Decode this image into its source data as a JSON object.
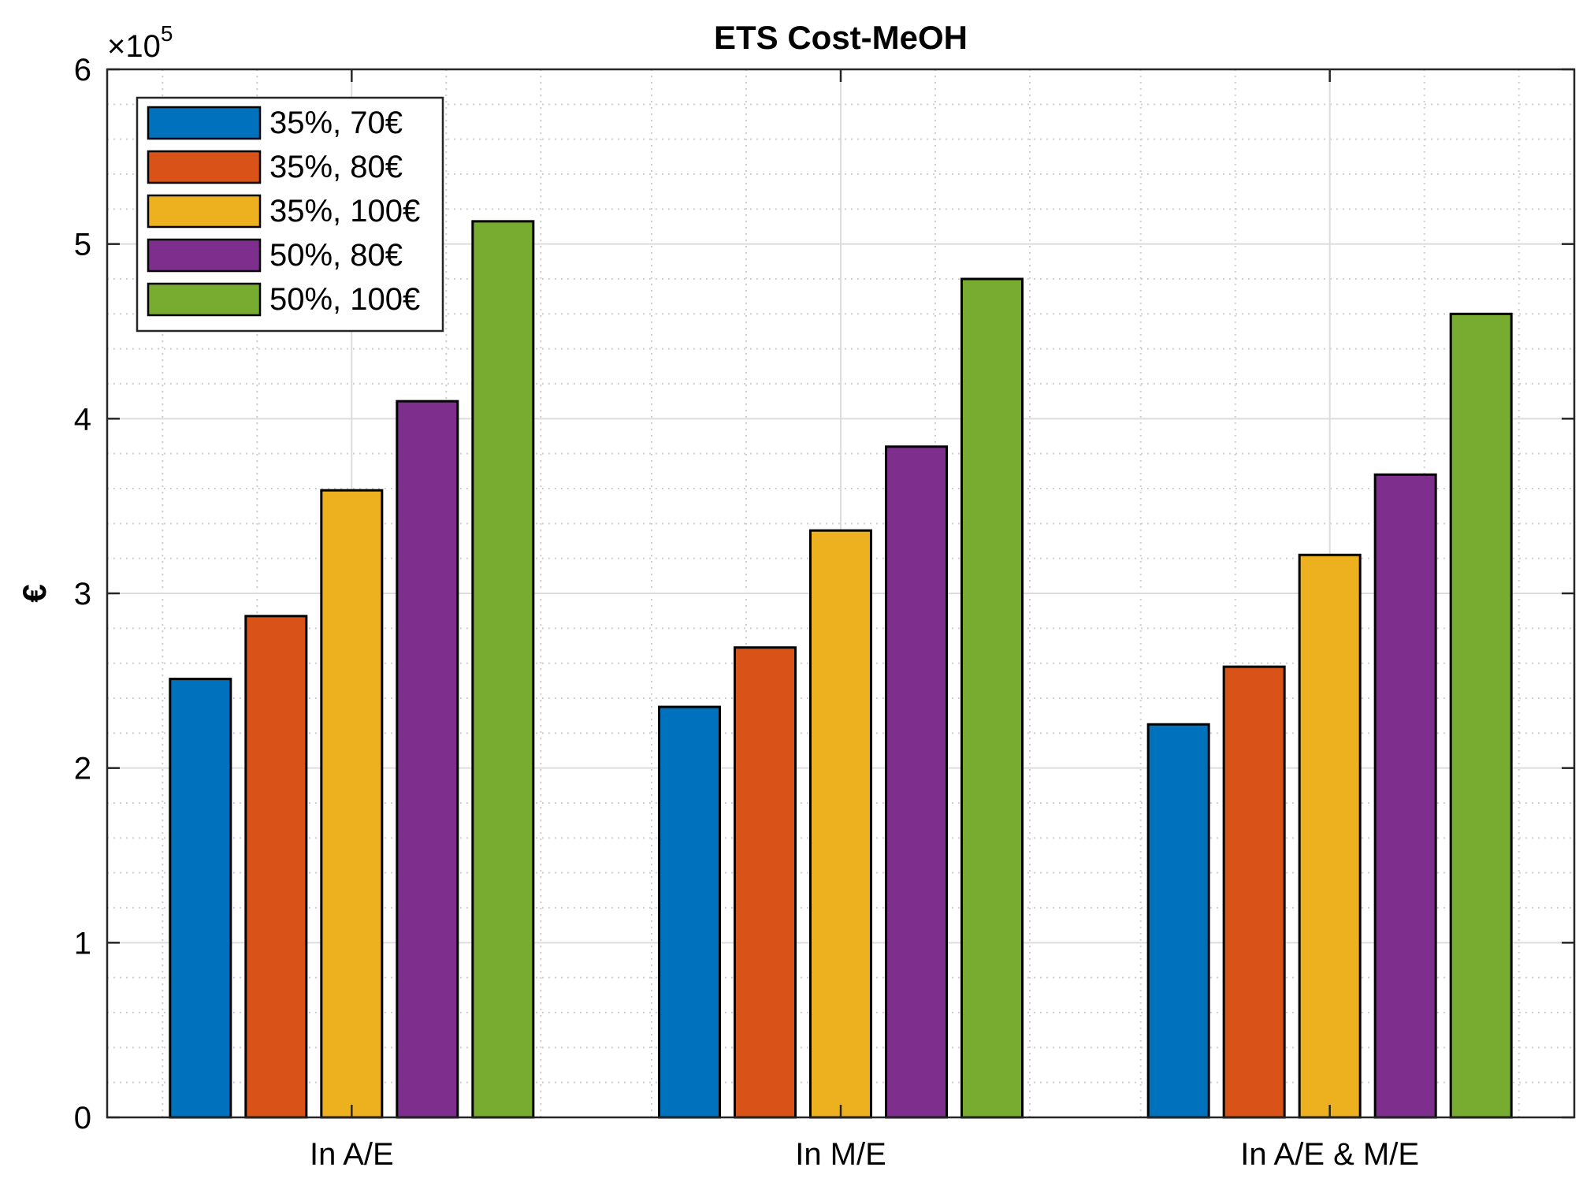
{
  "chart_data": {
    "type": "bar",
    "title": "ETS Cost-MeOH",
    "xlabel": "",
    "ylabel": "€",
    "y_exponent_label": "×10",
    "y_exponent_power": "5",
    "ylim": [
      0,
      6
    ],
    "y_ticks": [
      "0",
      "1",
      "2",
      "3",
      "4",
      "5",
      "6"
    ],
    "categories": [
      "In A/E",
      "In M/E",
      "In A/E & M/E"
    ],
    "series": [
      {
        "name": "35%, 70€",
        "color": "#0072BD",
        "values": [
          2.51,
          2.35,
          2.25
        ]
      },
      {
        "name": "35%, 80€",
        "color": "#D95319",
        "values": [
          2.87,
          2.69,
          2.58
        ]
      },
      {
        "name": "35%, 100€",
        "color": "#EDB120",
        "values": [
          3.59,
          3.36,
          3.22
        ]
      },
      {
        "name": "50%, 80€",
        "color": "#7E2F8E",
        "values": [
          4.1,
          3.84,
          3.68
        ]
      },
      {
        "name": "50%, 100€",
        "color": "#77AC30",
        "values": [
          5.13,
          4.8,
          4.6
        ]
      }
    ],
    "grid": true,
    "minor_grid": true,
    "legend_position": "top-left"
  }
}
